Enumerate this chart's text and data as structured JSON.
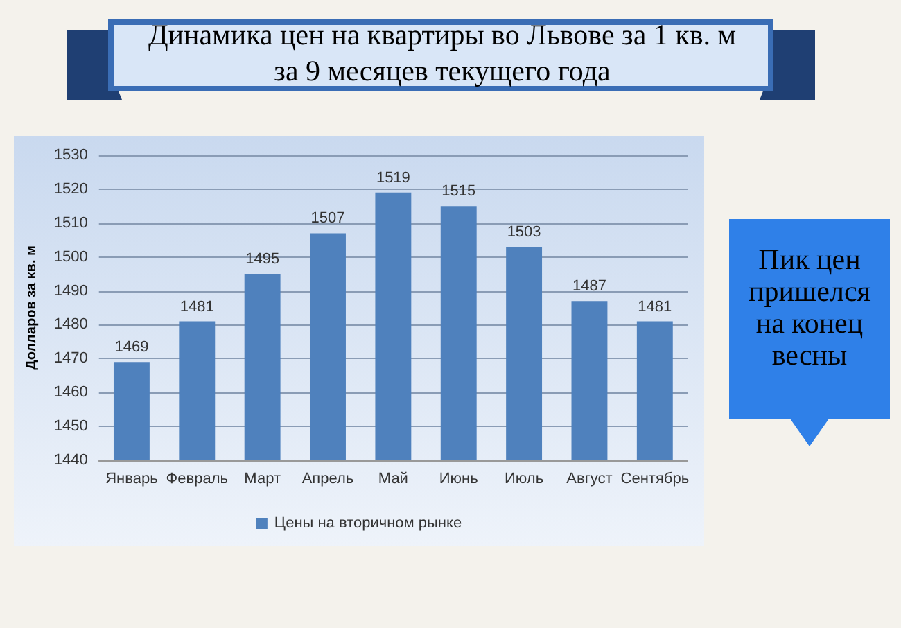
{
  "chart_data": {
    "type": "bar",
    "title": "Динамика цен на квартиры во Львове за 1 кв. м\nза 9 месяцев текущего года",
    "ylabel": "Долларов за кв. м",
    "categories": [
      "Январь",
      "Февраль",
      "Март",
      "Апрель",
      "Май",
      "Июнь",
      "Июль",
      "Август",
      "Сентябрь"
    ],
    "series": [
      {
        "name": "Цены на вторичном рынке",
        "color": "#4f81bd",
        "values": [
          1469,
          1481,
          1495,
          1507,
          1519,
          1515,
          1503,
          1487,
          1481
        ]
      }
    ],
    "ylim": [
      1440,
      1530
    ],
    "yticks": [
      1440,
      1450,
      1460,
      1470,
      1480,
      1490,
      1500,
      1510,
      1520,
      1530
    ],
    "grid": "y",
    "legend": "bottom",
    "data_labels": true,
    "annotations": [
      "Пик цен пришелся на конец весны"
    ]
  }
}
